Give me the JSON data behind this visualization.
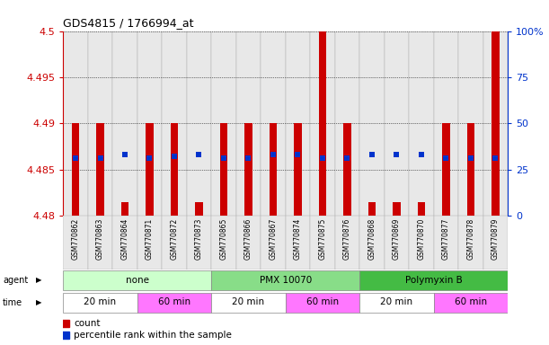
{
  "title": "GDS4815 / 1766994_at",
  "samples": [
    "GSM770862",
    "GSM770863",
    "GSM770864",
    "GSM770871",
    "GSM770872",
    "GSM770873",
    "GSM770865",
    "GSM770866",
    "GSM770867",
    "GSM770874",
    "GSM770875",
    "GSM770876",
    "GSM770868",
    "GSM770869",
    "GSM770870",
    "GSM770877",
    "GSM770878",
    "GSM770879"
  ],
  "bar_tops": [
    4.49,
    4.49,
    4.4815,
    4.49,
    4.49,
    4.4815,
    4.49,
    4.49,
    4.49,
    4.49,
    4.5,
    4.49,
    4.4815,
    4.4815,
    4.4815,
    4.49,
    4.49,
    4.5
  ],
  "bar_bottoms": [
    4.48,
    4.48,
    4.48,
    4.48,
    4.48,
    4.48,
    4.48,
    4.48,
    4.48,
    4.48,
    4.48,
    4.48,
    4.48,
    4.48,
    4.48,
    4.48,
    4.48,
    4.48
  ],
  "percentile_y": [
    4.4862,
    4.4862,
    4.4866,
    4.4862,
    4.4864,
    4.4866,
    4.4862,
    4.4862,
    4.4866,
    4.4866,
    4.4862,
    4.4862,
    4.4866,
    4.4866,
    4.4866,
    4.4862,
    4.4862,
    4.4862
  ],
  "ylim": [
    4.48,
    4.5
  ],
  "yticks": [
    4.48,
    4.485,
    4.49,
    4.495,
    4.5
  ],
  "ytick_labels": [
    "4.48",
    "4.485",
    "4.49",
    "4.495",
    "4.5"
  ],
  "right_yticks": [
    0,
    25,
    50,
    75,
    100
  ],
  "right_ytick_labels": [
    "0",
    "25",
    "50",
    "75",
    "100%"
  ],
  "bar_color": "#cc0000",
  "blue_color": "#0033cc",
  "agent_groups": [
    {
      "label": "none",
      "start": 0,
      "end": 6,
      "color": "#ccffcc"
    },
    {
      "label": "PMX 10070",
      "start": 6,
      "end": 12,
      "color": "#88dd88"
    },
    {
      "label": "Polymyxin B",
      "start": 12,
      "end": 18,
      "color": "#44bb44"
    }
  ],
  "time_groups": [
    {
      "label": "20 min",
      "start": 0,
      "end": 3,
      "color": "#ffffff"
    },
    {
      "label": "60 min",
      "start": 3,
      "end": 6,
      "color": "#ff77ff"
    },
    {
      "label": "20 min",
      "start": 6,
      "end": 9,
      "color": "#ffffff"
    },
    {
      "label": "60 min",
      "start": 9,
      "end": 12,
      "color": "#ff77ff"
    },
    {
      "label": "20 min",
      "start": 12,
      "end": 15,
      "color": "#ffffff"
    },
    {
      "label": "60 min",
      "start": 15,
      "end": 18,
      "color": "#ff77ff"
    }
  ],
  "left_axis_color": "#cc0000",
  "right_axis_color": "#0033cc",
  "sample_bg_color": "#e8e8e8",
  "sample_border_color": "#aaaaaa"
}
